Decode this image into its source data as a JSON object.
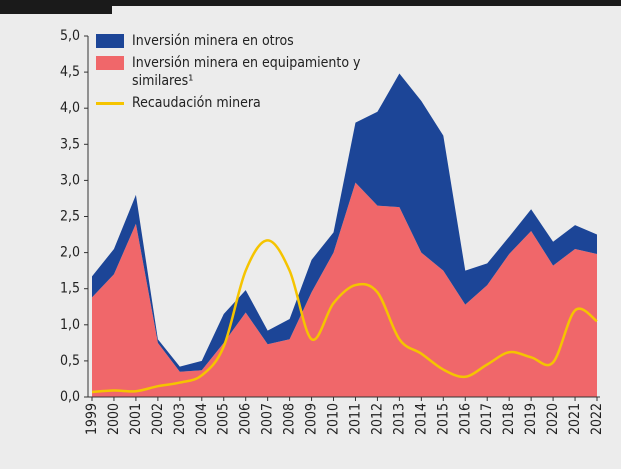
{
  "chart_data": {
    "type": "area",
    "stacked": true,
    "categories": [
      "1999",
      "2000",
      "2001",
      "2002",
      "2003",
      "2004",
      "2005",
      "2006",
      "2007",
      "2008",
      "2009",
      "2010",
      "2011",
      "2012",
      "2013",
      "2014",
      "2015",
      "2016",
      "2017",
      "2018",
      "2019",
      "2020",
      "2021",
      "2022"
    ],
    "series": [
      {
        "name": "Inversión minera en otros",
        "color": "#1c4597",
        "type": "area",
        "values": [
          0.29,
          0.35,
          0.4,
          0.05,
          0.07,
          0.13,
          0.4,
          0.31,
          0.19,
          0.28,
          0.45,
          0.28,
          0.83,
          1.3,
          1.85,
          2.1,
          1.87,
          0.47,
          0.3,
          0.24,
          0.3,
          0.33,
          0.33,
          0.27
        ]
      },
      {
        "name": "Inversión minera en equipamiento y similares¹",
        "color": "#f0676a",
        "type": "area",
        "values": [
          1.38,
          1.7,
          2.4,
          0.75,
          0.35,
          0.37,
          0.75,
          1.17,
          0.73,
          0.8,
          1.45,
          2.0,
          2.97,
          2.65,
          2.63,
          2.0,
          1.75,
          1.28,
          1.55,
          1.98,
          2.3,
          1.82,
          2.05,
          1.98
        ]
      },
      {
        "name": "Recaudación minera",
        "color": "#f5c400",
        "type": "line",
        "values": [
          0.07,
          0.09,
          0.08,
          0.15,
          0.2,
          0.3,
          0.7,
          1.75,
          2.17,
          1.75,
          0.8,
          1.3,
          1.55,
          1.45,
          0.8,
          0.6,
          0.38,
          0.28,
          0.45,
          0.62,
          0.55,
          0.48,
          1.2,
          1.05
        ]
      }
    ],
    "ylim": [
      0,
      5
    ],
    "yticks": [
      {
        "value": 0,
        "label": "0,0"
      },
      {
        "value": 0.5,
        "label": "0,5"
      },
      {
        "value": 1,
        "label": "1,0"
      },
      {
        "value": 1.5,
        "label": "1,5"
      },
      {
        "value": 2,
        "label": "2,0"
      },
      {
        "value": 2.5,
        "label": "2,5"
      },
      {
        "value": 3,
        "label": "3,0"
      },
      {
        "value": 3.5,
        "label": "3,5"
      },
      {
        "value": 4,
        "label": "4,0"
      },
      {
        "value": 4.5,
        "label": "4,5"
      },
      {
        "value": 5,
        "label": "5,0"
      }
    ],
    "legend": "top-left"
  }
}
